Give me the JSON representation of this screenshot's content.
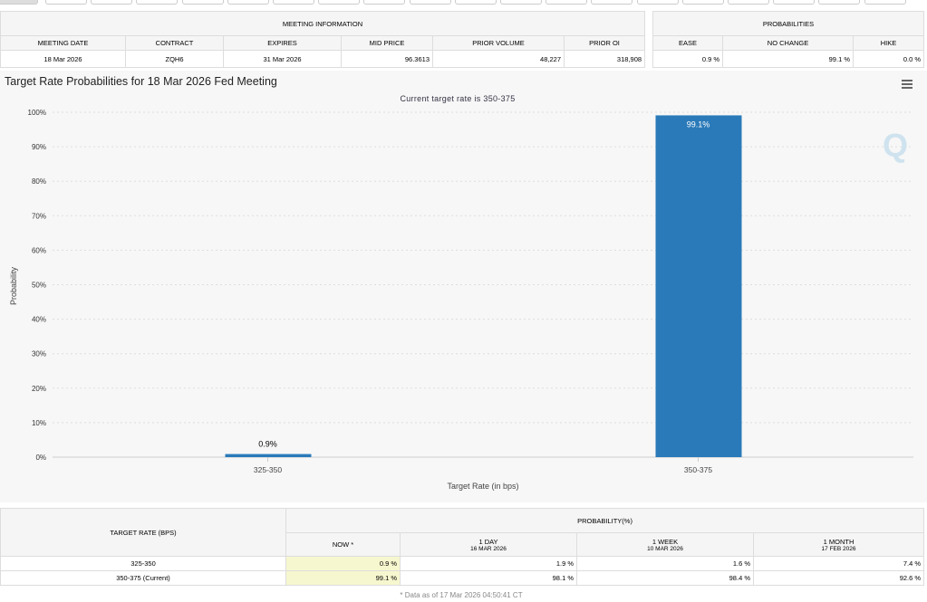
{
  "meeting_info": {
    "title": "MEETING INFORMATION",
    "headers": [
      "MEETING DATE",
      "CONTRACT",
      "EXPIRES",
      "MID PRICE",
      "PRIOR VOLUME",
      "PRIOR OI"
    ],
    "values": [
      "18 Mar 2026",
      "ZQH6",
      "31 Mar 2026",
      "96.3613",
      "48,227",
      "318,908"
    ]
  },
  "probabilities": {
    "title": "PROBABILITIES",
    "headers": [
      "EASE",
      "NO CHANGE",
      "HIKE"
    ],
    "values": [
      "0.9 %",
      "99.1 %",
      "0.0 %"
    ]
  },
  "chart": {
    "title": "Target Rate Probabilities for 18 Mar 2026 Fed Meeting",
    "subtitle": "Current target rate is 350-375"
  },
  "chart_data": {
    "type": "bar",
    "categories": [
      "325-350",
      "350-375"
    ],
    "values": [
      0.9,
      99.1
    ],
    "data_labels": [
      "0.9%",
      "99.1%"
    ],
    "xlabel": "Target Rate (in bps)",
    "ylabel": "Probability",
    "ylim": [
      0,
      100
    ],
    "yticks": [
      "0%",
      "10%",
      "20%",
      "30%",
      "40%",
      "50%",
      "60%",
      "70%",
      "80%",
      "90%",
      "100%"
    ],
    "grid": true,
    "bar_color": "#2a7ab9"
  },
  "bottom_table": {
    "rate_header": "TARGET RATE (BPS)",
    "prob_header": "PROBABILITY(%)",
    "cols": [
      {
        "l1": "NOW *",
        "l2": ""
      },
      {
        "l1": "1 DAY",
        "l2": "16 MAR 2026"
      },
      {
        "l1": "1 WEEK",
        "l2": "10 MAR 2026"
      },
      {
        "l1": "1 MONTH",
        "l2": "17 FEB 2026"
      }
    ],
    "rows": [
      {
        "rate": "325-350",
        "vals": [
          "0.9 %",
          "1.9 %",
          "1.6 %",
          "7.4 %"
        ]
      },
      {
        "rate": "350-375 (Current)",
        "vals": [
          "99.1 %",
          "98.1 %",
          "98.4 %",
          "92.6 %"
        ]
      }
    ],
    "footnote": "* Data as of 17 Mar 2026 04:50:41 CT"
  }
}
